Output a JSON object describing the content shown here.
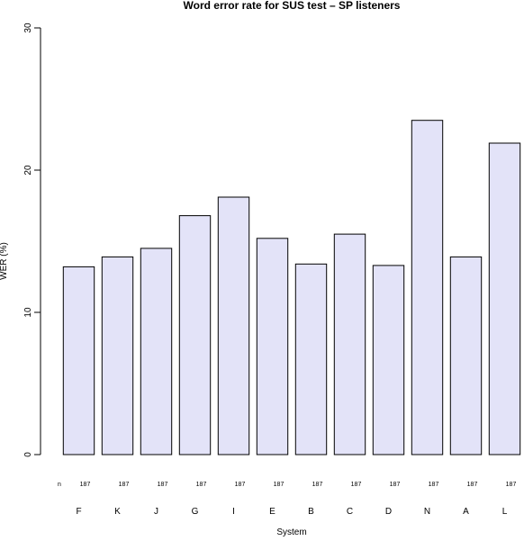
{
  "chart_data": {
    "type": "bar",
    "title": "Word error rate for SUS test – SP listeners",
    "xlabel": "System",
    "ylabel": "WER (%)",
    "ylim": [
      0,
      30
    ],
    "yticks": [
      0,
      10,
      20,
      30
    ],
    "categories": [
      "F",
      "K",
      "J",
      "G",
      "I",
      "E",
      "B",
      "C",
      "D",
      "N",
      "A",
      "L"
    ],
    "values": [
      13.2,
      13.9,
      14.5,
      16.8,
      18.1,
      15.2,
      13.4,
      15.5,
      13.3,
      23.5,
      13.9,
      21.9
    ],
    "n_label": "n",
    "n_values": [
      "187",
      "187",
      "187",
      "187",
      "187",
      "187",
      "187",
      "187",
      "187",
      "187",
      "187",
      "187"
    ],
    "bar_color": "#e3e3f8",
    "bar_edge_color": "#000000",
    "grid": false,
    "legend": "none"
  }
}
